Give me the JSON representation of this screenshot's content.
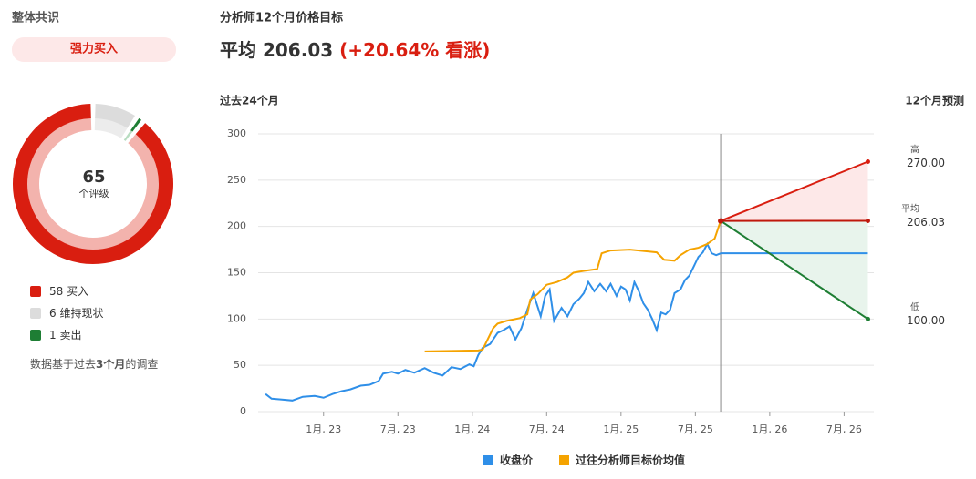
{
  "left": {
    "title": "整体共识",
    "consensus": "强力买入",
    "total": 65,
    "total_label": "个评级",
    "ratings": [
      {
        "count": 58,
        "label": "买入",
        "color": "#d91e10",
        "light": "#f3b3ad"
      },
      {
        "count": 6,
        "label": "维持现状",
        "color": "#dcdcdc",
        "light": "#ececec"
      },
      {
        "count": 1,
        "label": "卖出",
        "color": "#1e7e34",
        "light": "#b7dcc0"
      }
    ],
    "note_parts": [
      "数据基于过去",
      "3个月",
      "的调查"
    ]
  },
  "chart_data": {
    "type": "line",
    "title": "分析师12个月价格目标",
    "average_label": "平均",
    "average": 206.03,
    "upside": "(+20.64% 看涨)",
    "past_label": "过去24个月",
    "forecast_label": "12个月预测",
    "xlim": [
      2022.56,
      2026.7
    ],
    "ylim": [
      0,
      300
    ],
    "yticks": [
      0,
      50,
      100,
      150,
      200,
      250,
      300
    ],
    "xticks": [
      {
        "value": 2023,
        "label": "1月, 23"
      },
      {
        "value": 2023.5,
        "label": "7月, 23"
      },
      {
        "value": 2024,
        "label": "1月, 24"
      },
      {
        "value": 2024.5,
        "label": "7月, 24"
      },
      {
        "value": 2025,
        "label": "1月, 25"
      },
      {
        "value": 2025.5,
        "label": "7月, 25"
      },
      {
        "value": 2026,
        "label": "1月, 26"
      },
      {
        "value": 2026.5,
        "label": "7月, 26"
      }
    ],
    "grid": true,
    "series": [
      {
        "name": "收盘价",
        "color": "#2f8fe8",
        "x": [
          2022.61,
          2022.65,
          2022.72,
          2022.79,
          2022.86,
          2022.94,
          2023.0,
          2023.06,
          2023.12,
          2023.18,
          2023.25,
          2023.31,
          2023.37,
          2023.4,
          2023.46,
          2023.5,
          2023.55,
          2023.61,
          2023.68,
          2023.74,
          2023.8,
          2023.86,
          2023.92,
          2023.98,
          2024.01,
          2024.04,
          2024.07,
          2024.12,
          2024.17,
          2024.21,
          2024.25,
          2024.29,
          2024.33,
          2024.37,
          2024.41,
          2024.46,
          2024.49,
          2024.52,
          2024.55,
          2024.6,
          2024.64,
          2024.68,
          2024.72,
          2024.75,
          2024.78,
          2024.82,
          2024.86,
          2024.9,
          2024.93,
          2024.97,
          2025.0,
          2025.03,
          2025.06,
          2025.09,
          2025.12,
          2025.15,
          2025.18,
          2025.21,
          2025.24,
          2025.27,
          2025.3,
          2025.33,
          2025.36,
          2025.4,
          2025.43,
          2025.46,
          2025.49,
          2025.52,
          2025.55,
          2025.58,
          2025.61,
          2025.64,
          2025.67
        ],
        "values": [
          19,
          14,
          13,
          12,
          16,
          17,
          15,
          19,
          22,
          24,
          28,
          29,
          33,
          41,
          43,
          41,
          45,
          42,
          47,
          42,
          39,
          48,
          46,
          51,
          49,
          61,
          69,
          73,
          85,
          88,
          92,
          78,
          90,
          110,
          128,
          103,
          125,
          132,
          98,
          112,
          103,
          116,
          122,
          128,
          140,
          130,
          138,
          130,
          138,
          125,
          135,
          132,
          120,
          140,
          130,
          117,
          110,
          100,
          88,
          107,
          105,
          110,
          128,
          132,
          142,
          147,
          157,
          167,
          172,
          181,
          171,
          169,
          171
        ]
      },
      {
        "name": "过往分析师目标价均值",
        "color": "#f5a300",
        "x": [
          2023.68,
          2024.04,
          2024.07,
          2024.14,
          2024.17,
          2024.23,
          2024.32,
          2024.37,
          2024.39,
          2024.44,
          2024.5,
          2024.57,
          2024.64,
          2024.68,
          2024.75,
          2024.84,
          2024.87,
          2024.93,
          2025.06,
          2025.18,
          2025.24,
          2025.29,
          2025.36,
          2025.4,
          2025.46,
          2025.52,
          2025.58,
          2025.63,
          2025.67
        ],
        "values": [
          65,
          66,
          67,
          90,
          95,
          98,
          101,
          105,
          121,
          127,
          137,
          140,
          145,
          150,
          152,
          154,
          171,
          174,
          175,
          173,
          172,
          164,
          163,
          169,
          175,
          177,
          181,
          187,
          206
        ]
      }
    ],
    "forecast": {
      "x": [
        2025.67,
        2026.66
      ],
      "series": [
        {
          "name": "高",
          "value": 270,
          "value_label": "270.00",
          "color": "#d91e10",
          "fill": "#fde8e8"
        },
        {
          "name": "平均",
          "value": 206.03,
          "value_label": "206.03",
          "color": "#c0180c"
        },
        {
          "name": "低",
          "value": 100,
          "value_label": "100.00",
          "color": "#1e7e34",
          "fill": "#e8f4ec"
        }
      ]
    }
  }
}
